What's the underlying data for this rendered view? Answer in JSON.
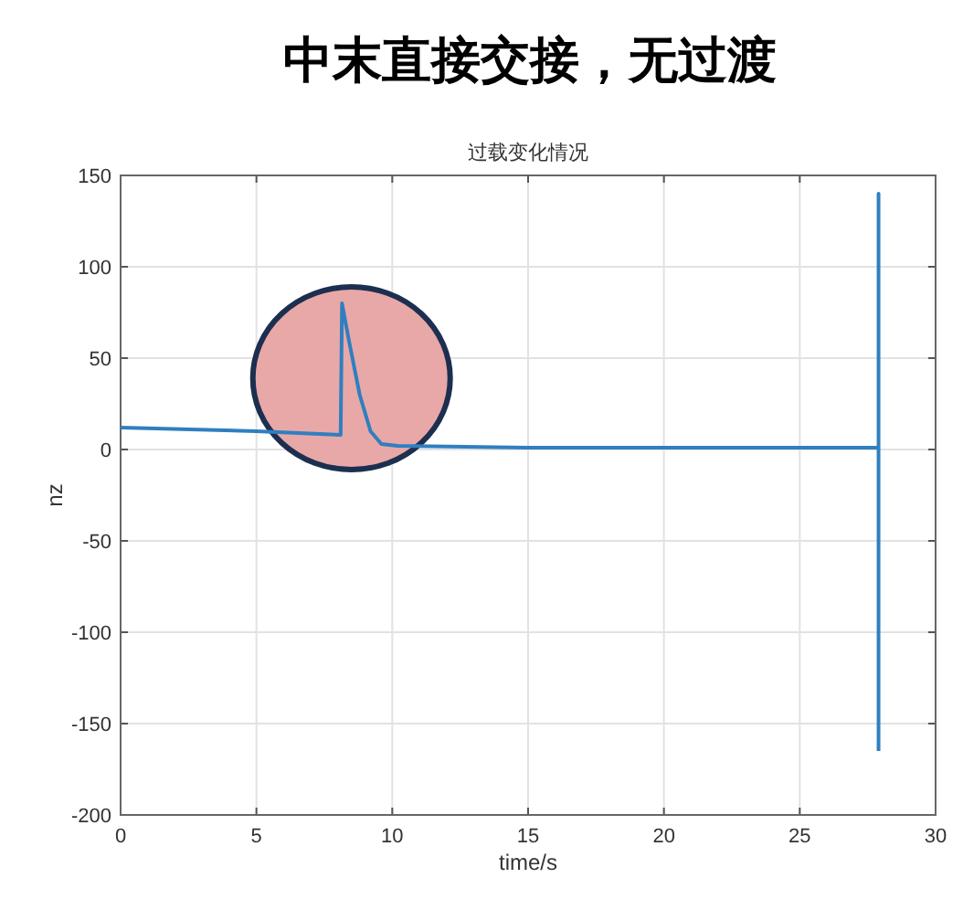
{
  "chart_data": {
    "type": "line",
    "title": "中末直接交接，无过渡",
    "subtitle": "过载变化情况",
    "xlabel": "time/s",
    "ylabel": "nz",
    "x": [
      0,
      5,
      8.1,
      8.15,
      8.4,
      8.8,
      9.2,
      9.6,
      10.2,
      15,
      27.9,
      27.9,
      27.9
    ],
    "series": [
      {
        "color": "#2f7fc0",
        "values": [
          12,
          10,
          8,
          80,
          60,
          30,
          10,
          3,
          2,
          1,
          1,
          140,
          -165
        ]
      }
    ],
    "xlim": [
      0,
      30
    ],
    "ylim": [
      -200,
      150
    ],
    "xticks": [
      0,
      5,
      10,
      15,
      20,
      25,
      30
    ],
    "yticks": [
      -200,
      -150,
      -100,
      -50,
      0,
      50,
      100,
      150
    ],
    "grid": true
  }
}
